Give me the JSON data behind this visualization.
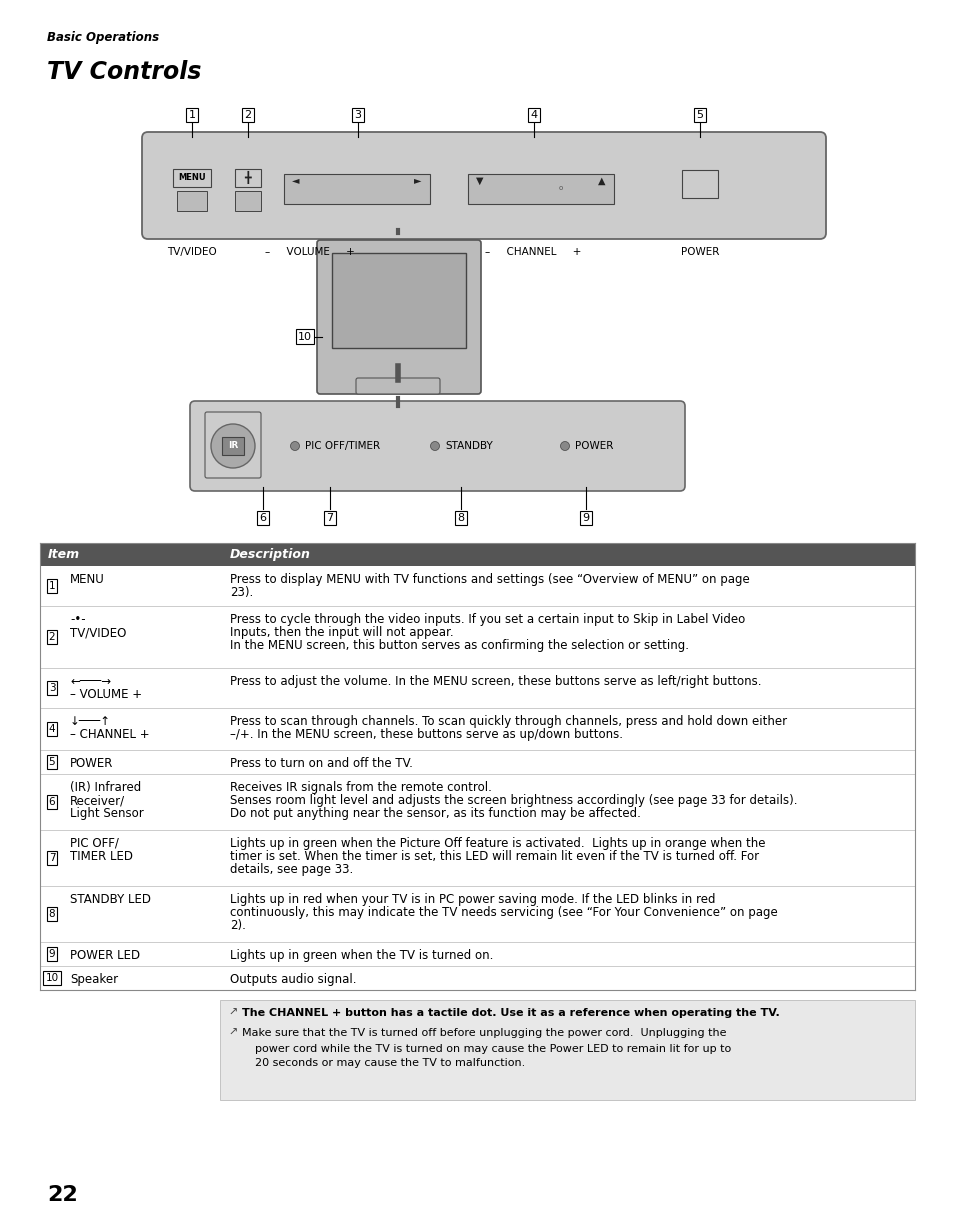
{
  "page_header": "Basic Operations",
  "title": "TV Controls",
  "bg_color": "#ffffff",
  "table_header_bg": "#555555",
  "table_header_color": "#ffffff",
  "note_bg": "#e8e8e8",
  "table_items": [
    {
      "num": "1",
      "item": "MENU",
      "description": "Press to display MENU with TV functions and settings (see “Overview of MENU” on page\n23)."
    },
    {
      "num": "2",
      "item": "-•-\nTV/VIDEO",
      "description": "Press to cycle through the video inputs. If you set a certain input to Skip in Label Video\nInputs, then the input will not appear.\nIn the MENU screen, this button serves as confirming the selection or setting."
    },
    {
      "num": "3",
      "item": "←───→\n– VOLUME +",
      "description": "Press to adjust the volume. In the MENU screen, these buttons serve as left/right buttons."
    },
    {
      "num": "4",
      "item": "↓───↑\n– CHANNEL +",
      "description": "Press to scan through channels. To scan quickly through channels, press and hold down either\n–/+. In the MENU screen, these buttons serve as up/down buttons."
    },
    {
      "num": "5",
      "item": "POWER",
      "description": "Press to turn on and off the TV."
    },
    {
      "num": "6",
      "item": "(IR) Infrared\nReceiver/\nLight Sensor",
      "description": "Receives IR signals from the remote control.\nSenses room light level and adjusts the screen brightness accordingly (see page 33 for details).\nDo not put anything near the sensor, as its function may be affected."
    },
    {
      "num": "7",
      "item": "PIC OFF/\nTIMER LED",
      "description": "Lights up in green when the Picture Off feature is activated.  Lights up in orange when the\ntimer is set. When the timer is set, this LED will remain lit even if the TV is turned off. For\ndetails, see page 33."
    },
    {
      "num": "8",
      "item": "STANDBY LED",
      "description": "Lights up in red when your TV is in PC power saving mode. If the LED blinks in red\ncontinuously, this may indicate the TV needs servicing (see “For Your Convenience” on page\n2)."
    },
    {
      "num": "9",
      "item": "POWER LED",
      "description": "Lights up in green when the TV is turned on."
    },
    {
      "num": "10",
      "item": "Speaker",
      "description": "Outputs audio signal."
    }
  ],
  "note1": "The CHANNEL + button has a tactile dot. Use it as a reference when operating the TV.",
  "note2_line1": "Make sure that the TV is turned off before unplugging the power cord.  Unplugging the",
  "note2_line2": "power cord while the TV is turned on may cause the Power LED to remain lit for up to",
  "note2_line3": "20 seconds or may cause the TV to malfunction.",
  "page_number": "22"
}
